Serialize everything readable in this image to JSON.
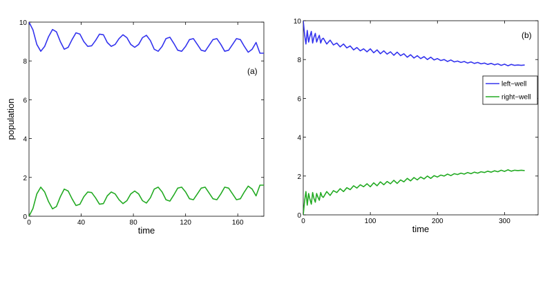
{
  "chart_data": [
    {
      "type": "line",
      "panel_label": "(a)",
      "xlabel": "time",
      "ylabel": "population",
      "xlim": [
        0,
        180
      ],
      "ylim": [
        0,
        10
      ],
      "xticks": [
        0,
        40,
        80,
        120,
        160
      ],
      "yticks": [
        0,
        2,
        4,
        6,
        8,
        10
      ],
      "grid": false,
      "legend": null,
      "series": [
        {
          "color": "#3333ee",
          "x": [
            0,
            3,
            6,
            9,
            12,
            15,
            18,
            21,
            24,
            27,
            30,
            33,
            36,
            39,
            42,
            45,
            48,
            51,
            54,
            57,
            60,
            63,
            66,
            69,
            72,
            75,
            78,
            81,
            84,
            87,
            90,
            93,
            96,
            99,
            102,
            105,
            108,
            111,
            114,
            117,
            120,
            123,
            126,
            129,
            132,
            135,
            138,
            141,
            144,
            147,
            150,
            153,
            156,
            159,
            162,
            165,
            168,
            171,
            174,
            177,
            180
          ],
          "values": [
            10.0,
            9.6,
            8.85,
            8.5,
            8.75,
            9.25,
            9.62,
            9.5,
            9.0,
            8.6,
            8.7,
            9.1,
            9.45,
            9.38,
            9.0,
            8.75,
            8.78,
            9.05,
            9.38,
            9.35,
            8.95,
            8.75,
            8.85,
            9.15,
            9.35,
            9.2,
            8.85,
            8.7,
            8.85,
            9.2,
            9.32,
            9.05,
            8.6,
            8.5,
            8.75,
            9.15,
            9.22,
            8.9,
            8.55,
            8.5,
            8.75,
            9.1,
            9.15,
            8.85,
            8.55,
            8.5,
            8.8,
            9.1,
            9.15,
            8.85,
            8.5,
            8.55,
            8.85,
            9.15,
            9.1,
            8.75,
            8.45,
            8.6,
            8.95,
            8.4,
            8.4
          ]
        },
        {
          "color": "#22aa22",
          "x": [
            0,
            3,
            6,
            9,
            12,
            15,
            18,
            21,
            24,
            27,
            30,
            33,
            36,
            39,
            42,
            45,
            48,
            51,
            54,
            57,
            60,
            63,
            66,
            69,
            72,
            75,
            78,
            81,
            84,
            87,
            90,
            93,
            96,
            99,
            102,
            105,
            108,
            111,
            114,
            117,
            120,
            123,
            126,
            129,
            132,
            135,
            138,
            141,
            144,
            147,
            150,
            153,
            156,
            159,
            162,
            165,
            168,
            171,
            174,
            177,
            180
          ],
          "values": [
            0.0,
            0.4,
            1.15,
            1.5,
            1.25,
            0.75,
            0.38,
            0.5,
            1.0,
            1.4,
            1.3,
            0.9,
            0.55,
            0.62,
            1.0,
            1.25,
            1.22,
            0.95,
            0.62,
            0.65,
            1.05,
            1.25,
            1.15,
            0.85,
            0.65,
            0.8,
            1.15,
            1.3,
            1.15,
            0.8,
            0.68,
            0.95,
            1.4,
            1.5,
            1.25,
            0.85,
            0.78,
            1.1,
            1.45,
            1.5,
            1.25,
            0.9,
            0.85,
            1.15,
            1.45,
            1.5,
            1.2,
            0.9,
            0.85,
            1.15,
            1.5,
            1.45,
            1.15,
            0.85,
            0.9,
            1.25,
            1.55,
            1.4,
            1.05,
            1.6,
            1.6
          ]
        }
      ]
    },
    {
      "type": "line",
      "panel_label": "(b)",
      "xlabel": "time",
      "ylabel": "",
      "xlim": [
        0,
        350
      ],
      "ylim": [
        0,
        10
      ],
      "xticks": [
        0,
        100,
        200,
        300
      ],
      "yticks": [
        0,
        2,
        4,
        6,
        8,
        10
      ],
      "grid": false,
      "legend": {
        "placement": "right",
        "entries": [
          "left−well",
          "right−well"
        ]
      },
      "series": [
        {
          "name": "left−well",
          "color": "#3333ee",
          "x": [
            0,
            2,
            4,
            6,
            8,
            10,
            12,
            14,
            16,
            18,
            20,
            22,
            24,
            26,
            28,
            30,
            35,
            40,
            45,
            50,
            55,
            60,
            65,
            70,
            75,
            80,
            85,
            90,
            95,
            100,
            105,
            110,
            115,
            120,
            125,
            130,
            135,
            140,
            145,
            150,
            155,
            160,
            165,
            170,
            175,
            180,
            185,
            190,
            195,
            200,
            205,
            210,
            215,
            220,
            225,
            230,
            235,
            240,
            245,
            250,
            255,
            260,
            265,
            270,
            275,
            280,
            285,
            290,
            295,
            300,
            305,
            310,
            315,
            320,
            325,
            330
          ],
          "values": [
            10.0,
            9.3,
            8.8,
            9.5,
            8.9,
            9.2,
            9.45,
            8.85,
            9.15,
            9.35,
            8.9,
            9.1,
            9.25,
            8.85,
            9.05,
            9.1,
            8.8,
            9.0,
            8.75,
            8.85,
            8.65,
            8.8,
            8.6,
            8.7,
            8.5,
            8.62,
            8.45,
            8.55,
            8.4,
            8.55,
            8.35,
            8.5,
            8.3,
            8.45,
            8.28,
            8.4,
            8.22,
            8.38,
            8.2,
            8.3,
            8.12,
            8.25,
            8.08,
            8.2,
            8.05,
            8.15,
            8.0,
            8.12,
            7.98,
            8.05,
            7.95,
            8.0,
            7.9,
            7.98,
            7.88,
            7.92,
            7.85,
            7.9,
            7.82,
            7.88,
            7.8,
            7.85,
            7.78,
            7.82,
            7.75,
            7.8,
            7.73,
            7.78,
            7.7,
            7.76,
            7.68,
            7.75,
            7.7,
            7.72,
            7.7,
            7.72
          ]
        },
        {
          "name": "right−well",
          "color": "#22aa22",
          "x": [
            0,
            2,
            4,
            6,
            8,
            10,
            12,
            14,
            16,
            18,
            20,
            22,
            24,
            26,
            28,
            30,
            35,
            40,
            45,
            50,
            55,
            60,
            65,
            70,
            75,
            80,
            85,
            90,
            95,
            100,
            105,
            110,
            115,
            120,
            125,
            130,
            135,
            140,
            145,
            150,
            155,
            160,
            165,
            170,
            175,
            180,
            185,
            190,
            195,
            200,
            205,
            210,
            215,
            220,
            225,
            230,
            235,
            240,
            245,
            250,
            255,
            260,
            265,
            270,
            275,
            280,
            285,
            290,
            295,
            300,
            305,
            310,
            315,
            320,
            325,
            330
          ],
          "values": [
            0.0,
            0.7,
            1.2,
            0.5,
            1.1,
            0.8,
            0.55,
            1.15,
            0.85,
            0.65,
            1.1,
            0.9,
            0.75,
            1.15,
            0.95,
            0.9,
            1.2,
            1.0,
            1.25,
            1.15,
            1.35,
            1.2,
            1.4,
            1.3,
            1.5,
            1.38,
            1.55,
            1.45,
            1.6,
            1.45,
            1.65,
            1.5,
            1.7,
            1.55,
            1.72,
            1.6,
            1.78,
            1.62,
            1.8,
            1.7,
            1.88,
            1.75,
            1.92,
            1.8,
            1.95,
            1.85,
            2.0,
            1.88,
            2.02,
            1.95,
            2.05,
            2.0,
            2.1,
            2.02,
            2.12,
            2.08,
            2.15,
            2.1,
            2.18,
            2.12,
            2.2,
            2.15,
            2.22,
            2.18,
            2.25,
            2.2,
            2.27,
            2.22,
            2.3,
            2.24,
            2.32,
            2.25,
            2.3,
            2.28,
            2.3,
            2.28
          ]
        }
      ]
    }
  ]
}
